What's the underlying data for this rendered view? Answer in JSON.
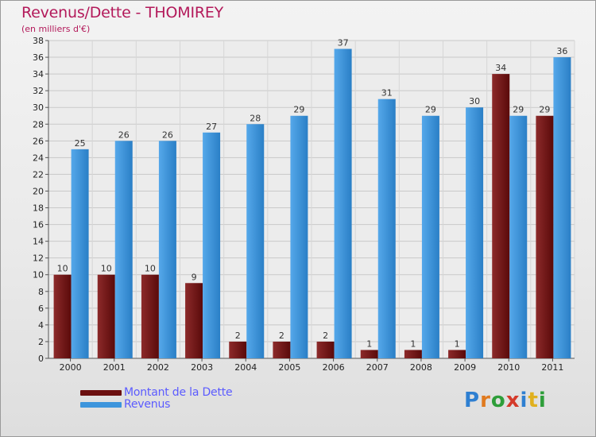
{
  "header": {
    "title": "Revenus/Dette - THOMIREY",
    "subtitle": "(en milliers d'€)"
  },
  "colors": {
    "dette": "#7a1a1a",
    "revenus": "#3d95dc"
  },
  "legend": {
    "items": [
      {
        "label": "Montant de la Dette",
        "color": "#6b0f0f"
      },
      {
        "label": "Revenus",
        "color": "#3d95dc"
      }
    ]
  },
  "logo": {
    "text": "Proxiti",
    "letter_colors": [
      "#2e7fd1",
      "#e07a1f",
      "#2e9e3a",
      "#d43a2a",
      "#2e7fd1",
      "#e0b01f",
      "#2e9e3a"
    ]
  },
  "chart_data": {
    "type": "bar",
    "categories": [
      "2000",
      "2001",
      "2002",
      "2003",
      "2004",
      "2005",
      "2006",
      "2007",
      "2008",
      "2009",
      "2010",
      "2011"
    ],
    "series": [
      {
        "name": "Montant de la Dette",
        "values": [
          10,
          10,
          10,
          9,
          2,
          2,
          2,
          1,
          1,
          1,
          34,
          29
        ]
      },
      {
        "name": "Revenus",
        "values": [
          25,
          26,
          26,
          27,
          28,
          29,
          37,
          31,
          29,
          30,
          29,
          36
        ]
      }
    ],
    "ylim": [
      0,
      38
    ],
    "yticks": [
      0,
      2,
      4,
      6,
      8,
      10,
      12,
      14,
      16,
      18,
      20,
      22,
      24,
      26,
      28,
      30,
      32,
      34,
      36,
      38
    ],
    "grid": true,
    "legend_position": "bottom-left"
  }
}
